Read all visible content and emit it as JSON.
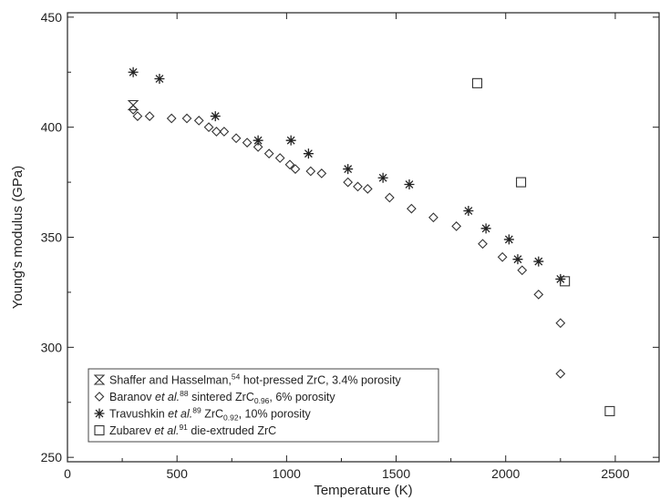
{
  "chart_data": {
    "type": "scatter",
    "xlabel": "Temperature (K)",
    "ylabel": "Young's modulus (GPa)",
    "xlim": [
      0,
      2700
    ],
    "ylim": [
      248,
      452
    ],
    "x_ticks": [
      0,
      500,
      1000,
      1500,
      2000,
      2500
    ],
    "y_ticks": [
      250,
      300,
      350,
      400,
      450
    ],
    "grid": false,
    "legend_position": "bottom-left",
    "series": [
      {
        "name": "Shaffer and Hasselman, hot-pressed ZrC, 3.4% porosity",
        "marker": "hourglass",
        "legend": {
          "pre": "Shaffer and Hasselman,",
          "ref": "54",
          "post": " hot-pressed ZrC, 3.4% porosity"
        },
        "points": [
          [
            300,
            410
          ]
        ]
      },
      {
        "name": "Baranov et al., sintered ZrC0.96, 6% porosity",
        "marker": "diamond",
        "legend": {
          "pre": "Baranov ",
          "italic": "et al.",
          "ref": "88",
          "mid": " sintered ZrC",
          "sub": "0.96",
          "post": ", 6% porosity"
        },
        "points": [
          [
            300,
            408
          ],
          [
            320,
            405
          ],
          [
            375,
            405
          ],
          [
            475,
            404
          ],
          [
            545,
            404
          ],
          [
            600,
            403
          ],
          [
            645,
            400
          ],
          [
            680,
            398
          ],
          [
            715,
            398
          ],
          [
            770,
            395
          ],
          [
            820,
            393
          ],
          [
            870,
            391
          ],
          [
            920,
            388
          ],
          [
            970,
            386
          ],
          [
            1015,
            383
          ],
          [
            1040,
            381
          ],
          [
            1110,
            380
          ],
          [
            1160,
            379
          ],
          [
            1280,
            375
          ],
          [
            1325,
            373
          ],
          [
            1370,
            372
          ],
          [
            1470,
            368
          ],
          [
            1570,
            363
          ],
          [
            1670,
            359
          ],
          [
            1775,
            355
          ],
          [
            1895,
            347
          ],
          [
            1985,
            341
          ],
          [
            2075,
            335
          ],
          [
            2150,
            324
          ],
          [
            2250,
            311
          ],
          [
            2250,
            288
          ]
        ]
      },
      {
        "name": "Travushkin et al., ZrC0.92, 10% porosity",
        "marker": "asterisk",
        "legend": {
          "pre": "Travushkin ",
          "italic": "et al.",
          "ref": "89",
          "mid": " ZrC",
          "sub": "0.92",
          "post": ", 10% porosity"
        },
        "points": [
          [
            300,
            425
          ],
          [
            420,
            422
          ],
          [
            675,
            405
          ],
          [
            870,
            394
          ],
          [
            1020,
            394
          ],
          [
            1100,
            388
          ],
          [
            1280,
            381
          ],
          [
            1440,
            377
          ],
          [
            1560,
            374
          ],
          [
            1830,
            362
          ],
          [
            1910,
            354
          ],
          [
            2015,
            349
          ],
          [
            2055,
            340
          ],
          [
            2150,
            339
          ],
          [
            2250,
            331
          ]
        ]
      },
      {
        "name": "Zubarev et al., die-extruded ZrC",
        "marker": "square",
        "legend": {
          "pre": "Zubarev ",
          "italic": "et al.",
          "ref": "91",
          "post": " die-extruded ZrC"
        },
        "points": [
          [
            1870,
            420
          ],
          [
            2070,
            375
          ],
          [
            2270,
            330
          ],
          [
            2475,
            271
          ]
        ]
      }
    ]
  }
}
